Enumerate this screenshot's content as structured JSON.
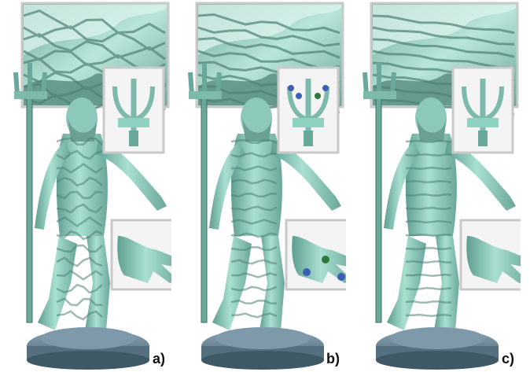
{
  "panels": [
    {
      "label": "a)",
      "variant": "irregular"
    },
    {
      "label": "b)",
      "variant": "constrained"
    },
    {
      "label": "c)",
      "variant": "regular"
    }
  ],
  "colors": {
    "surface": "#8fd2c2",
    "surface_light": "#c8ece2",
    "stripe_dark": "#5c958a",
    "pedestal": "#6c8797",
    "inset_frame": "#c9c9c9",
    "marker_green": "#2f7a3a",
    "marker_blue": "#3a5fb5"
  }
}
